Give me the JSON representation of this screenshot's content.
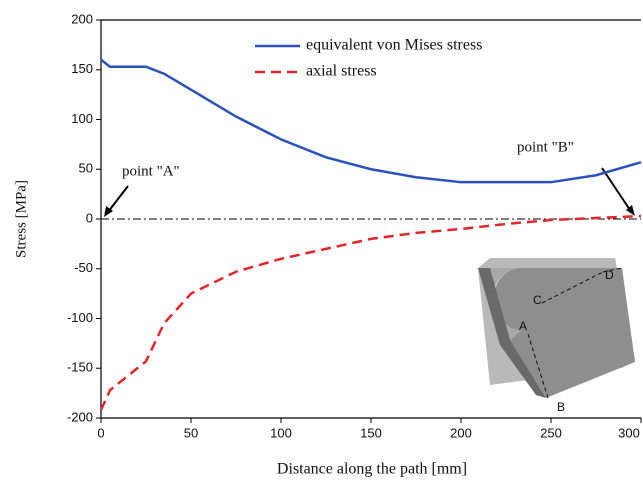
{
  "chart_data": {
    "type": "line",
    "xlabel": "Distance along the path [mm]",
    "ylabel": "Stress  [MPa]",
    "x": [
      0,
      5,
      25,
      35,
      50,
      75,
      100,
      125,
      150,
      175,
      200,
      225,
      250,
      275,
      300
    ],
    "series": [
      {
        "name": "equivalent von Mises stress",
        "color": "#2a52be",
        "dash": "solid",
        "values": [
          160,
          153,
          153,
          146,
          130,
          103,
          80,
          62,
          50,
          42,
          37,
          37,
          37,
          44,
          57
        ]
      },
      {
        "name": "axial stress",
        "color": "#e0262b",
        "dash": "dashed",
        "values": [
          -192,
          -172,
          -143,
          -105,
          -75,
          -53,
          -40,
          -30,
          -20,
          -14,
          -10,
          -5,
          -1,
          1,
          3
        ]
      }
    ],
    "xlim": [
      0,
      300
    ],
    "xticks": [
      0,
      50,
      100,
      150,
      200,
      250,
      300
    ],
    "ylim": [
      -200,
      200
    ],
    "yticks": [
      -200,
      -150,
      -100,
      -50,
      0,
      50,
      100,
      150,
      200
    ],
    "annotations": [
      "point \"A\"",
      "point \"B\""
    ],
    "inset_labels": [
      "A",
      "B",
      "C",
      "D"
    ]
  }
}
